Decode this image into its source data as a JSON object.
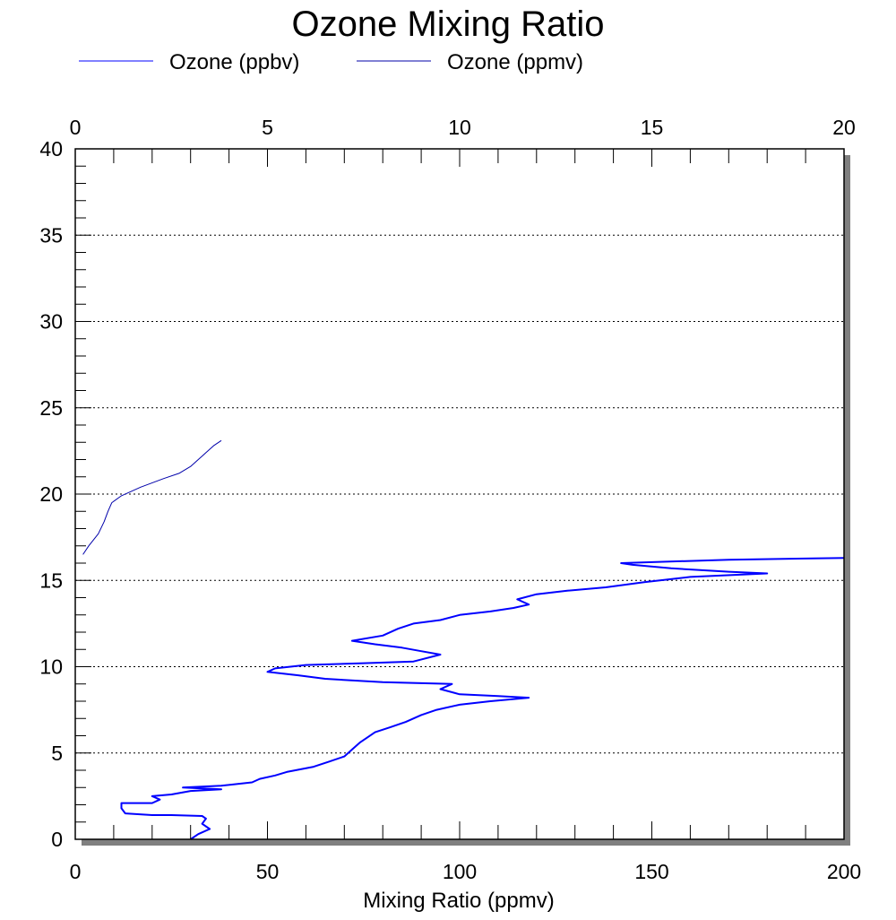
{
  "chart_data": {
    "type": "line",
    "title": "Ozone Mixing Ratio",
    "xlabel": "Mixing Ratio (ppmv)",
    "ylabel": "",
    "xlim_bottom": [
      0,
      200
    ],
    "xlim_top": [
      0,
      20
    ],
    "ylim": [
      0,
      40
    ],
    "x_ticks_bottom": [
      "0",
      "50",
      "100",
      "150",
      "200"
    ],
    "x_ticks_top": [
      "0",
      "5",
      "10",
      "15",
      "20"
    ],
    "y_ticks": [
      "0",
      "5",
      "10",
      "15",
      "20",
      "25",
      "30",
      "35",
      "40"
    ],
    "y_gridlines": [
      5,
      10,
      15,
      20,
      25,
      30,
      35
    ],
    "grid": "horizontal dotted",
    "legend_position": "top",
    "series": [
      {
        "name": "Ozone (ppbv)",
        "axis": "bottom",
        "color": "#0000ff",
        "points": [
          [
            30,
            0
          ],
          [
            32,
            0.3
          ],
          [
            35,
            0.6
          ],
          [
            33,
            0.9
          ],
          [
            34,
            1.2
          ],
          [
            33,
            1.35
          ],
          [
            25,
            1.4
          ],
          [
            20,
            1.4
          ],
          [
            13,
            1.5
          ],
          [
            12,
            1.8
          ],
          [
            12,
            2.1
          ],
          [
            20,
            2.1
          ],
          [
            22,
            2.3
          ],
          [
            20,
            2.5
          ],
          [
            25,
            2.6
          ],
          [
            30,
            2.8
          ],
          [
            38,
            2.9
          ],
          [
            28,
            3.0
          ],
          [
            38,
            3.1
          ],
          [
            46,
            3.3
          ],
          [
            48,
            3.5
          ],
          [
            52,
            3.7
          ],
          [
            55,
            3.9
          ],
          [
            62,
            4.2
          ],
          [
            66,
            4.5
          ],
          [
            70,
            4.8
          ],
          [
            72,
            5.2
          ],
          [
            74,
            5.6
          ],
          [
            76,
            5.9
          ],
          [
            78,
            6.2
          ],
          [
            82,
            6.5
          ],
          [
            86,
            6.8
          ],
          [
            90,
            7.2
          ],
          [
            94,
            7.5
          ],
          [
            100,
            7.8
          ],
          [
            108,
            8.0
          ],
          [
            118,
            8.2
          ],
          [
            110,
            8.3
          ],
          [
            100,
            8.4
          ],
          [
            95,
            8.7
          ],
          [
            98,
            9.0
          ],
          [
            80,
            9.1
          ],
          [
            65,
            9.3
          ],
          [
            58,
            9.5
          ],
          [
            50,
            9.7
          ],
          [
            52,
            9.9
          ],
          [
            60,
            10.1
          ],
          [
            75,
            10.2
          ],
          [
            88,
            10.3
          ],
          [
            95,
            10.7
          ],
          [
            90,
            10.9
          ],
          [
            85,
            11.1
          ],
          [
            78,
            11.3
          ],
          [
            72,
            11.5
          ],
          [
            80,
            11.8
          ],
          [
            84,
            12.2
          ],
          [
            88,
            12.5
          ],
          [
            95,
            12.7
          ],
          [
            100,
            13.0
          ],
          [
            108,
            13.2
          ],
          [
            114,
            13.4
          ],
          [
            118,
            13.6
          ],
          [
            115,
            13.9
          ],
          [
            120,
            14.2
          ],
          [
            128,
            14.4
          ],
          [
            138,
            14.6
          ],
          [
            148,
            14.9
          ],
          [
            160,
            15.2
          ],
          [
            180,
            15.4
          ],
          [
            170,
            15.5
          ],
          [
            155,
            15.7
          ],
          [
            145,
            15.9
          ],
          [
            142,
            16.0
          ],
          [
            170,
            16.2
          ],
          [
            200,
            16.3
          ]
        ]
      },
      {
        "name": "Ozone (ppmv)",
        "axis": "top",
        "color": "#0000aa",
        "points": [
          [
            0.2,
            16.5
          ],
          [
            0.35,
            17.0
          ],
          [
            0.6,
            17.7
          ],
          [
            0.75,
            18.4
          ],
          [
            0.85,
            19.0
          ],
          [
            0.95,
            19.5
          ],
          [
            1.2,
            19.9
          ],
          [
            1.7,
            20.4
          ],
          [
            2.3,
            20.9
          ],
          [
            2.7,
            21.2
          ],
          [
            3.0,
            21.6
          ],
          [
            3.2,
            22.0
          ],
          [
            3.4,
            22.4
          ],
          [
            3.6,
            22.8
          ],
          [
            3.8,
            23.1
          ]
        ]
      }
    ]
  }
}
